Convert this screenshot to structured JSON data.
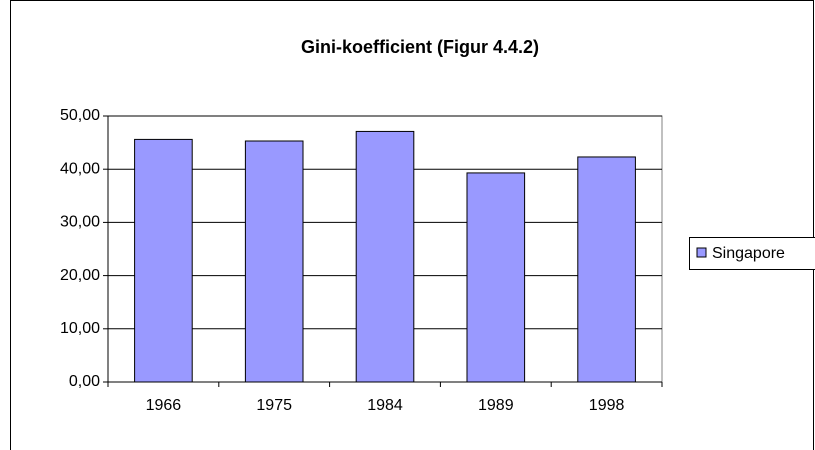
{
  "chart_data": {
    "type": "bar",
    "title": "Gini-koefficient (Figur 4.4.2)",
    "categories": [
      "1966",
      "1975",
      "1984",
      "1989",
      "1998"
    ],
    "series": [
      {
        "name": "Singapore",
        "color": "#9999ff",
        "values": [
          45.6,
          45.3,
          47.1,
          39.3,
          42.3
        ]
      }
    ],
    "ylim": [
      0,
      50
    ],
    "yticks": [
      {
        "value": 0,
        "label": "0,00"
      },
      {
        "value": 10,
        "label": "10,00"
      },
      {
        "value": 20,
        "label": "20,00"
      },
      {
        "value": 30,
        "label": "30,00"
      },
      {
        "value": 40,
        "label": "40,00"
      },
      {
        "value": 50,
        "label": "50,00"
      }
    ],
    "grid": true,
    "legend": "right"
  }
}
